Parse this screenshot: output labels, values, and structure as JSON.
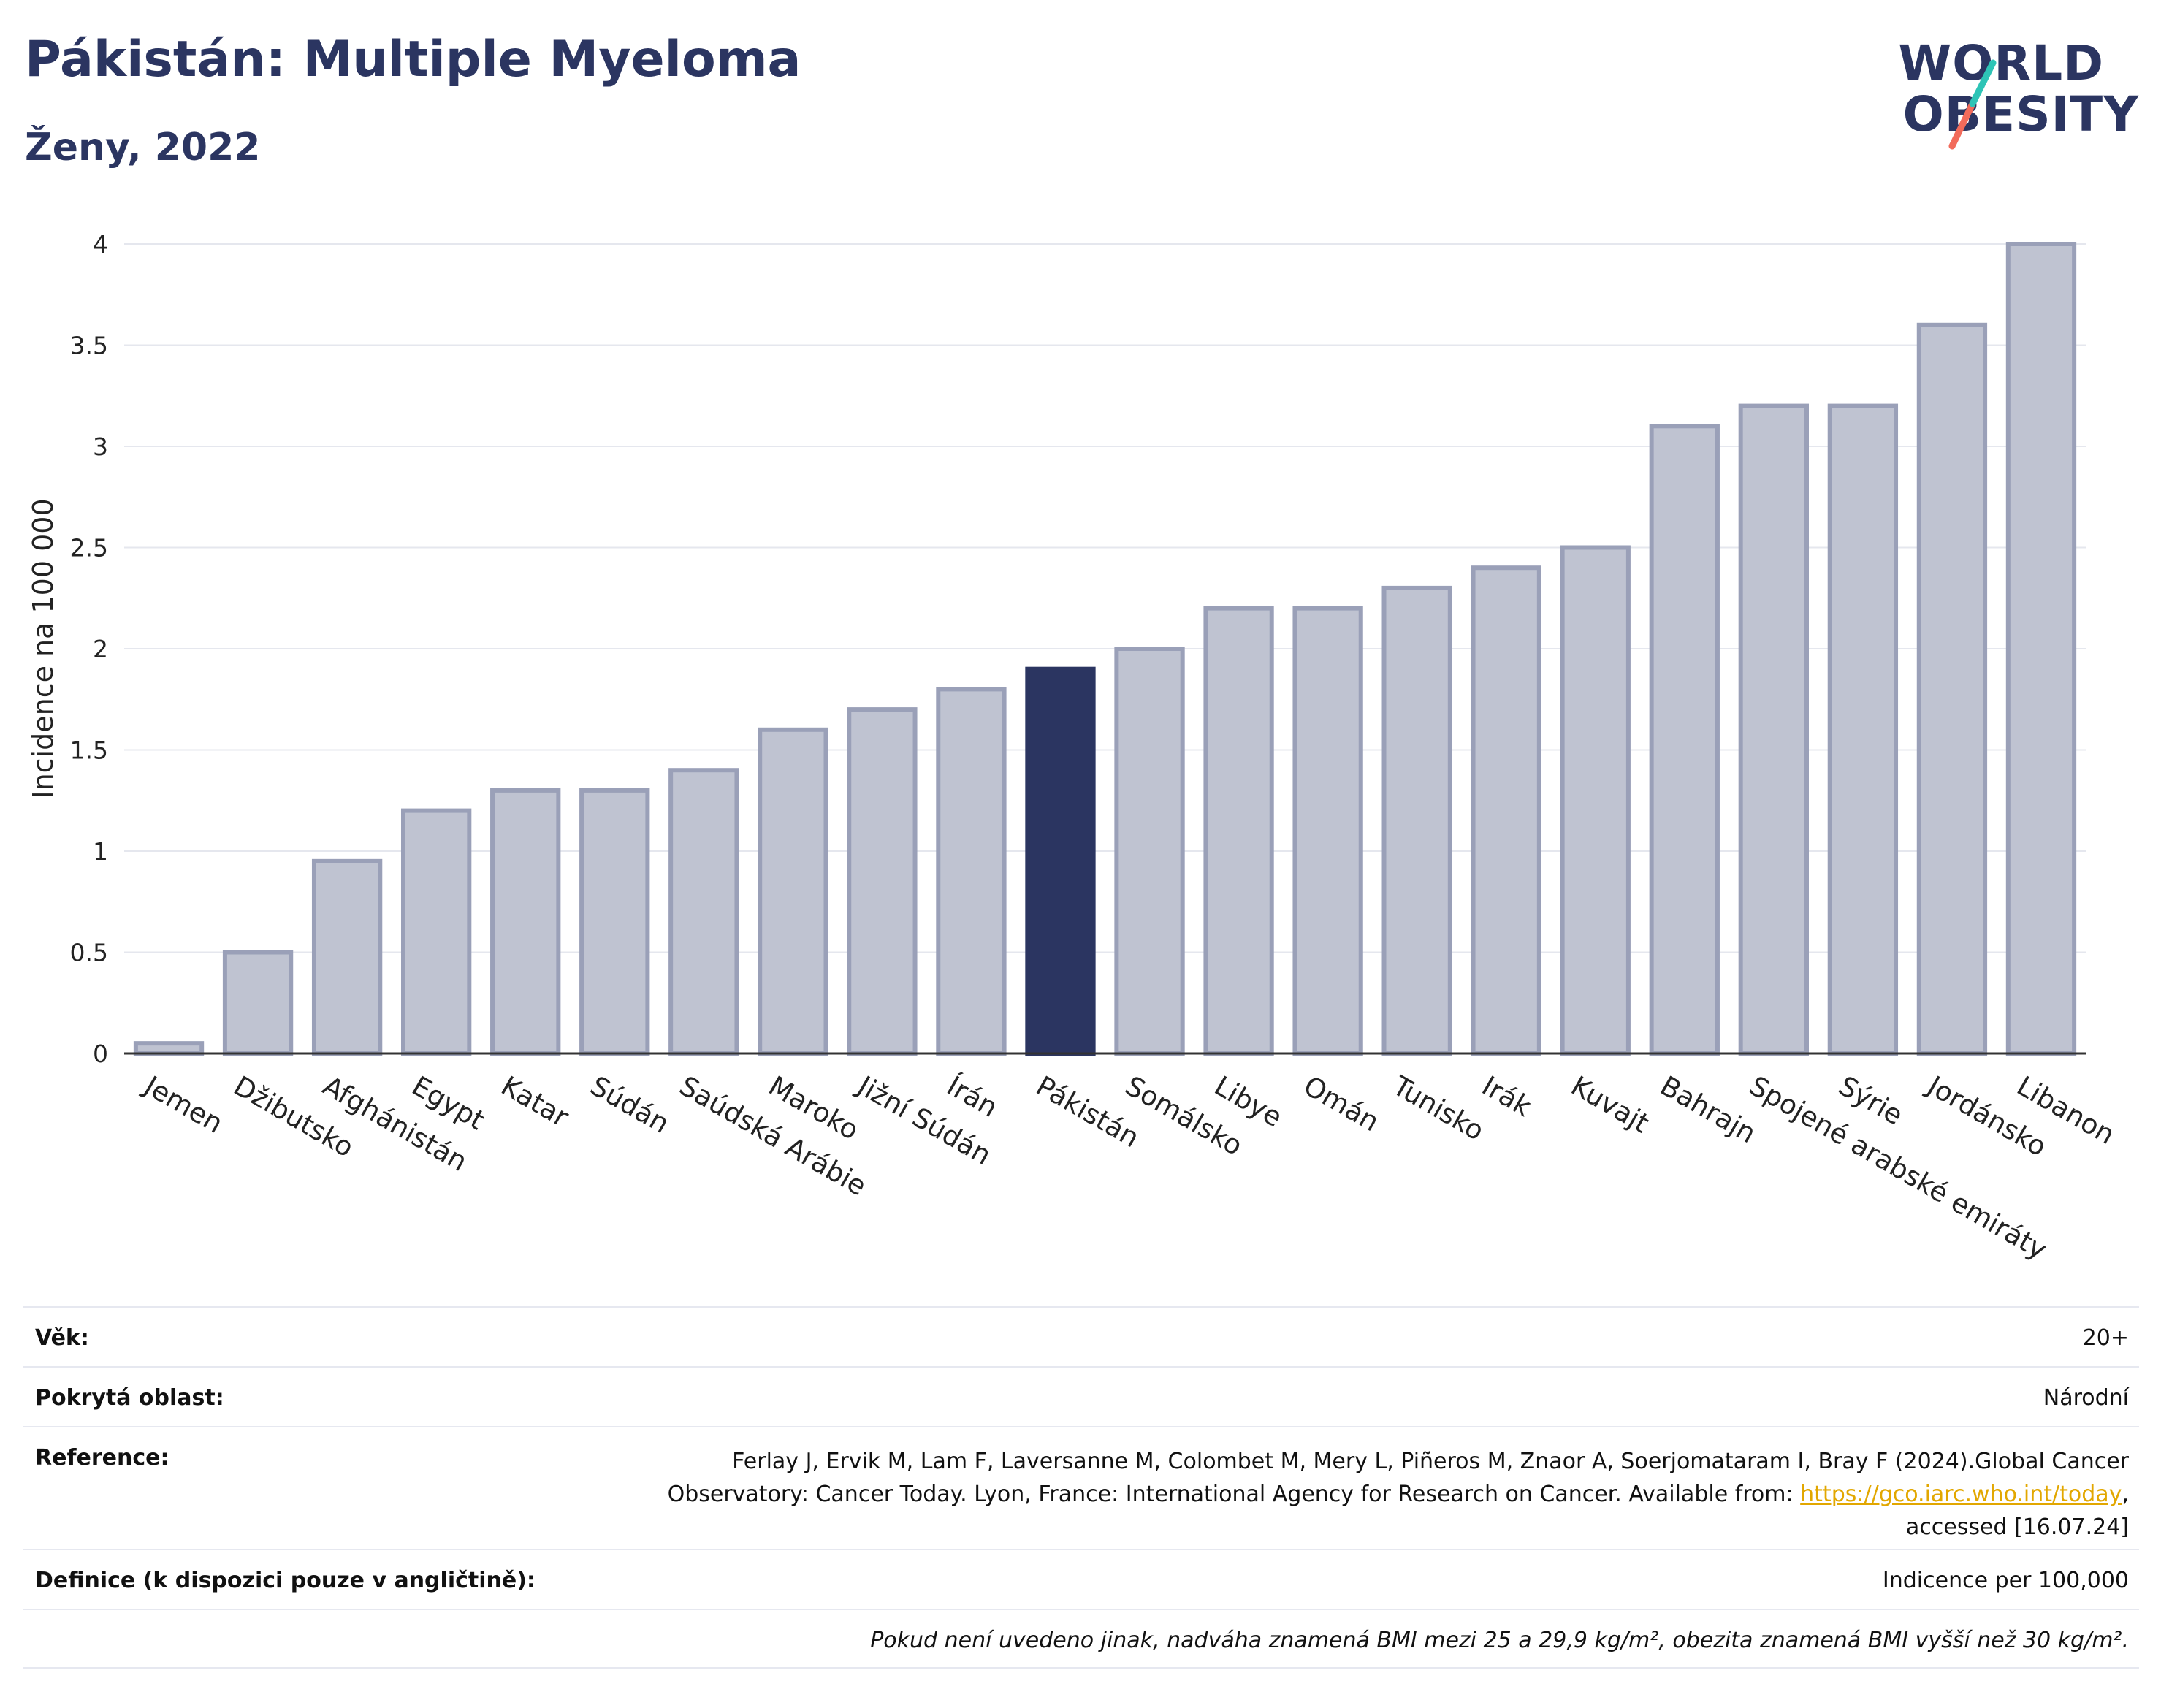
{
  "header": {
    "title": "Pákistán: Multiple Myeloma",
    "subtitle": "Ženy, 2022"
  },
  "logo": {
    "line1": "WORLD",
    "line2": "OBESITY",
    "accent_colors": [
      "#2ec4b6",
      "#f26b5b"
    ]
  },
  "colors": {
    "highlight": "#2b3561",
    "bar": "#bfc3d1",
    "bar_border": "#9aa0b8",
    "grid": "#e5e7ee"
  },
  "chart_data": {
    "type": "bar",
    "ylabel": "Incidence na 100 000",
    "xlabel": "",
    "ylim": [
      0,
      4
    ],
    "yticks": [
      "0",
      "0.5",
      "1",
      "1.5",
      "2",
      "2.5",
      "3",
      "3.5",
      "4"
    ],
    "grid": true,
    "highlight": "Pákistán",
    "categories": [
      "Jemen",
      "Džibutsko",
      "Afghánistán",
      "Egypt",
      "Katar",
      "Súdán",
      "Saúdská Arábie",
      "Maroko",
      "Jižní Súdán",
      "Írán",
      "Pákistán",
      "Somálsko",
      "Libye",
      "Omán",
      "Tunisko",
      "Irák",
      "Kuvajt",
      "Bahrajn",
      "Spojené arabské emiráty",
      "Sýrie",
      "Jordánsko",
      "Libanon"
    ],
    "values": [
      0.05,
      0.5,
      0.95,
      1.2,
      1.3,
      1.3,
      1.4,
      1.6,
      1.7,
      1.8,
      1.9,
      2.0,
      2.2,
      2.2,
      2.3,
      2.4,
      2.5,
      3.1,
      3.2,
      3.2,
      3.6,
      4.0
    ]
  },
  "info": {
    "age_label": "Věk:",
    "age_value": "20+",
    "area_label": "Pokrytá oblast:",
    "area_value": "Národní",
    "reference_label": "Reference:",
    "reference_line1": "Ferlay J, Ervik M, Lam F, Laversanne M, Colombet M, Mery L, Piñeros M, Znaor A, Soerjomataram I, Bray F (2024).Global Cancer",
    "reference_line2": "Observatory: Cancer Today. Lyon, France: International Agency for Research on Cancer. Available from: ",
    "reference_link": "https://gco.iarc.who.int/today",
    "reference_line2_end": ",",
    "reference_line3": "accessed [16.07.24]",
    "definition_label": "Definice (k dispozici pouze v angličtině):",
    "definition_value": "Indicence per 100,000",
    "note": "Pokud není uvedeno jinak, nadváha znamená BMI mezi 25 a 29,9 kg/m², obezita znamená BMI vyšší než 30 kg/m²."
  }
}
